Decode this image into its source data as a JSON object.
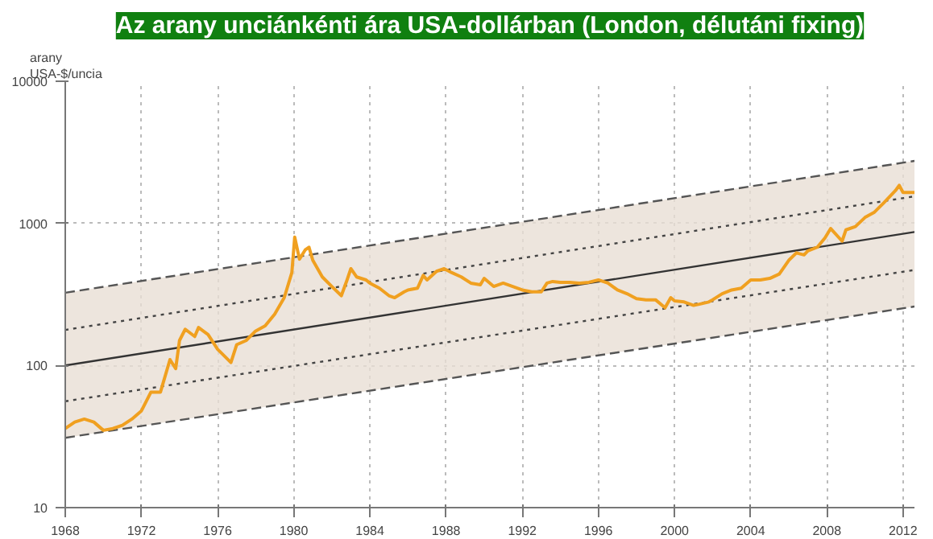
{
  "chart_data": {
    "type": "line",
    "title": "Az arany unciánkénti ára USA-dollárban (London, délutáni fixing)",
    "ylabel": "arany\nUSA-$/uncia",
    "log": "y",
    "grid": true,
    "marker": "none",
    "xlim": [
      1968,
      2012.6
    ],
    "ylim": [
      10,
      10000
    ],
    "xticks": [
      1968,
      1972,
      1976,
      1980,
      1984,
      1988,
      1992,
      1996,
      2000,
      2004,
      2008,
      2012
    ],
    "yticks": [
      10,
      100,
      1000,
      10000
    ],
    "series": [
      {
        "x": [
          1968,
          2012.6
        ],
        "values": [
          100,
          870
        ],
        "lower": [
          31,
          260
        ],
        "upper": [
          325,
          2750
        ],
        "color": "#333333",
        "line_style": "solid"
      },
      {
        "x": [
          1968,
          2012.6
        ],
        "values": [
          325,
          2750
        ],
        "color": "#555555",
        "line_style": "dashed"
      },
      {
        "x": [
          1968,
          2012.6
        ],
        "values": [
          31,
          260
        ],
        "color": "#555555",
        "line_style": "dashed"
      },
      {
        "x": [
          1968,
          2012.6
        ],
        "values": [
          178,
          1550
        ],
        "color": "#444444",
        "line_style": "dotted"
      },
      {
        "x": [
          1968,
          2012.6
        ],
        "values": [
          56,
          470
        ],
        "color": "#444444",
        "line_style": "dotted"
      },
      {
        "x": [
          1968,
          1968.5,
          1969,
          1969.5,
          1970,
          1970.5,
          1971,
          1971.5,
          1972,
          1972.5,
          1973,
          1973.5,
          1973.8,
          1974,
          1974.3,
          1974.8,
          1975,
          1975.5,
          1976,
          1976.7,
          1977,
          1977.5,
          1978,
          1978.5,
          1979,
          1979.5,
          1979.9,
          1980.05,
          1980.3,
          1980.6,
          1980.8,
          1981,
          1981.5,
          1982,
          1982.5,
          1982.8,
          1983,
          1983.3,
          1983.8,
          1984,
          1984.5,
          1985,
          1985.3,
          1985.8,
          1986,
          1986.5,
          1986.8,
          1987,
          1987.5,
          1987.9,
          1988.3,
          1988.8,
          1989.3,
          1989.8,
          1990,
          1990.5,
          1991,
          1991.5,
          1992,
          1992.5,
          1993,
          1993.3,
          1993.6,
          1994,
          1994.5,
          1995,
          1995.5,
          1996,
          1996.5,
          1997,
          1997.5,
          1998,
          1998.5,
          1999,
          1999.5,
          1999.8,
          2000,
          2000.5,
          2001,
          2001.3,
          2001.8,
          2002,
          2002.5,
          2003,
          2003.5,
          2004,
          2004.5,
          2005,
          2005.5,
          2006,
          2006.4,
          2006.8,
          2007,
          2007.5,
          2007.9,
          2008.2,
          2008.8,
          2009,
          2009.5,
          2010,
          2010.5,
          2011,
          2011.6,
          2011.8,
          2012,
          2012.6
        ],
        "values": [
          36,
          40,
          42,
          40,
          35,
          36,
          38,
          42,
          48,
          65,
          65,
          110,
          95,
          150,
          180,
          160,
          185,
          165,
          130,
          105,
          140,
          150,
          175,
          190,
          230,
          300,
          450,
          800,
          560,
          650,
          680,
          550,
          420,
          360,
          310,
          400,
          480,
          420,
          400,
          380,
          350,
          310,
          300,
          330,
          340,
          350,
          430,
          400,
          460,
          480,
          450,
          420,
          380,
          370,
          410,
          360,
          380,
          360,
          340,
          330,
          330,
          380,
          390,
          385,
          385,
          380,
          385,
          400,
          380,
          340,
          320,
          295,
          290,
          290,
          255,
          300,
          285,
          280,
          265,
          270,
          280,
          290,
          320,
          340,
          350,
          400,
          400,
          410,
          440,
          550,
          620,
          600,
          640,
          680,
          790,
          920,
          750,
          900,
          950,
          1100,
          1200,
          1400,
          1700,
          1850,
          1650,
          1650
        ],
        "color": "#f0a020",
        "line_style": "solid"
      }
    ]
  }
}
